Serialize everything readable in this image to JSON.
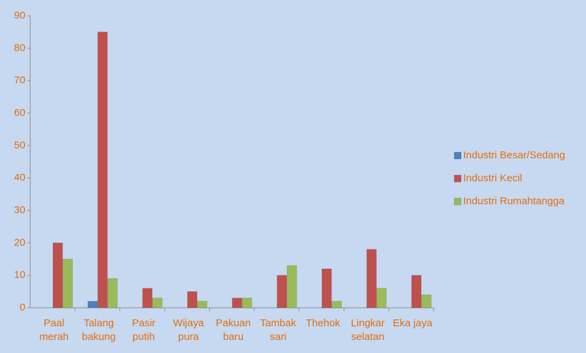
{
  "chart_data": {
    "type": "bar",
    "categories": [
      "Paal merah",
      "Talang bakung",
      "Pasir putih",
      "Wijaya pura",
      "Pakuan baru",
      "Tambak sari",
      "Thehok",
      "Lingkar selatan",
      "Eka jaya"
    ],
    "series": [
      {
        "name": "Industri Besar/Sedang",
        "color": "#4f81bd",
        "values": [
          0,
          2,
          0,
          0,
          0,
          0,
          0,
          0,
          0
        ]
      },
      {
        "name": "Industri Kecil",
        "color": "#c0504d",
        "values": [
          20,
          85,
          6,
          5,
          3,
          10,
          12,
          18,
          10
        ]
      },
      {
        "name": "Industri Rumahtangga",
        "color": "#9bbb59",
        "values": [
          15,
          9,
          3,
          2,
          3,
          13,
          2,
          6,
          4
        ]
      }
    ],
    "ylim": [
      0,
      90
    ],
    "yticks": [
      0,
      10,
      20,
      30,
      40,
      50,
      60,
      70,
      80,
      90
    ],
    "legend": "right"
  }
}
